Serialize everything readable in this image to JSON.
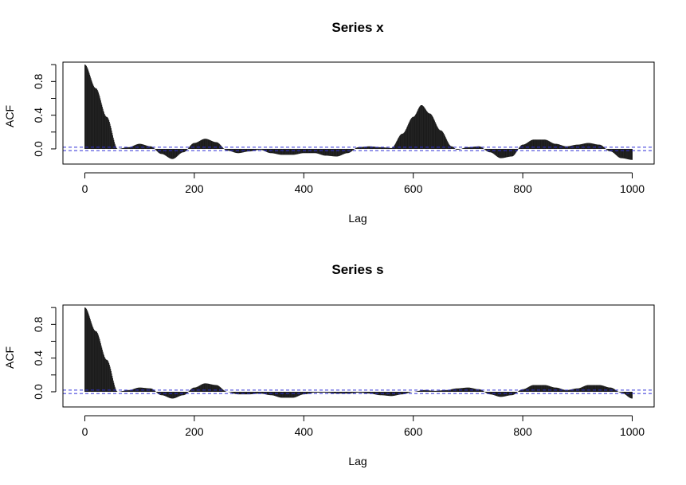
{
  "chart_data": [
    {
      "type": "bar",
      "title": "Series  x",
      "xlabel": "Lag",
      "ylabel": "ACF",
      "xlim": [
        -40,
        1040
      ],
      "ylim": [
        -0.18,
        1.03
      ],
      "x_ticks": [
        "0",
        "200",
        "400",
        "600",
        "800",
        "1000"
      ],
      "y_ticks": [
        "0.0",
        "0.4",
        "0.8"
      ],
      "conf_limit": 0.02,
      "acf_profile": [
        [
          0,
          1.0
        ],
        [
          20,
          0.72
        ],
        [
          40,
          0.38
        ],
        [
          60,
          0.0
        ],
        [
          80,
          0.02
        ],
        [
          100,
          0.06
        ],
        [
          120,
          0.03
        ],
        [
          140,
          -0.06
        ],
        [
          160,
          -0.12
        ],
        [
          180,
          -0.04
        ],
        [
          200,
          0.07
        ],
        [
          220,
          0.12
        ],
        [
          240,
          0.08
        ],
        [
          260,
          -0.02
        ],
        [
          280,
          -0.05
        ],
        [
          300,
          -0.03
        ],
        [
          320,
          -0.01
        ],
        [
          340,
          -0.05
        ],
        [
          360,
          -0.07
        ],
        [
          380,
          -0.07
        ],
        [
          400,
          -0.05
        ],
        [
          420,
          -0.05
        ],
        [
          440,
          -0.08
        ],
        [
          460,
          -0.09
        ],
        [
          480,
          -0.05
        ],
        [
          500,
          0.02
        ],
        [
          520,
          0.03
        ],
        [
          540,
          0.02
        ],
        [
          560,
          0.01
        ],
        [
          580,
          0.18
        ],
        [
          600,
          0.38
        ],
        [
          615,
          0.52
        ],
        [
          630,
          0.42
        ],
        [
          650,
          0.22
        ],
        [
          670,
          0.03
        ],
        [
          680,
          -0.01
        ],
        [
          700,
          0.02
        ],
        [
          720,
          0.03
        ],
        [
          740,
          -0.04
        ],
        [
          760,
          -0.11
        ],
        [
          780,
          -0.09
        ],
        [
          800,
          0.05
        ],
        [
          820,
          0.11
        ],
        [
          840,
          0.11
        ],
        [
          860,
          0.06
        ],
        [
          880,
          0.03
        ],
        [
          900,
          0.05
        ],
        [
          920,
          0.07
        ],
        [
          940,
          0.05
        ],
        [
          960,
          -0.03
        ],
        [
          980,
          -0.11
        ],
        [
          1000,
          -0.13
        ]
      ]
    },
    {
      "type": "bar",
      "title": "Series  s",
      "xlabel": "Lag",
      "ylabel": "ACF",
      "xlim": [
        -40,
        1040
      ],
      "ylim": [
        -0.18,
        1.03
      ],
      "x_ticks": [
        "0",
        "200",
        "400",
        "600",
        "800",
        "1000"
      ],
      "y_ticks": [
        "0.0",
        "0.4",
        "0.8"
      ],
      "conf_limit": 0.02,
      "acf_profile": [
        [
          0,
          1.0
        ],
        [
          20,
          0.72
        ],
        [
          40,
          0.38
        ],
        [
          60,
          0.0
        ],
        [
          80,
          0.02
        ],
        [
          100,
          0.05
        ],
        [
          120,
          0.04
        ],
        [
          140,
          -0.04
        ],
        [
          160,
          -0.08
        ],
        [
          180,
          -0.04
        ],
        [
          200,
          0.05
        ],
        [
          220,
          0.1
        ],
        [
          240,
          0.08
        ],
        [
          260,
          0.0
        ],
        [
          280,
          -0.03
        ],
        [
          300,
          -0.03
        ],
        [
          320,
          -0.02
        ],
        [
          340,
          -0.04
        ],
        [
          360,
          -0.07
        ],
        [
          380,
          -0.07
        ],
        [
          400,
          -0.03
        ],
        [
          420,
          -0.01
        ],
        [
          440,
          -0.01
        ],
        [
          460,
          -0.02
        ],
        [
          480,
          -0.02
        ],
        [
          500,
          -0.01
        ],
        [
          520,
          -0.02
        ],
        [
          540,
          -0.04
        ],
        [
          560,
          -0.05
        ],
        [
          580,
          -0.03
        ],
        [
          600,
          0.0
        ],
        [
          620,
          0.02
        ],
        [
          640,
          0.01
        ],
        [
          660,
          0.02
        ],
        [
          680,
          0.04
        ],
        [
          700,
          0.05
        ],
        [
          720,
          0.03
        ],
        [
          740,
          -0.03
        ],
        [
          760,
          -0.06
        ],
        [
          780,
          -0.04
        ],
        [
          800,
          0.03
        ],
        [
          820,
          0.08
        ],
        [
          840,
          0.08
        ],
        [
          860,
          0.05
        ],
        [
          880,
          0.02
        ],
        [
          900,
          0.04
        ],
        [
          920,
          0.08
        ],
        [
          940,
          0.08
        ],
        [
          960,
          0.05
        ],
        [
          980,
          -0.01
        ],
        [
          1000,
          -0.08
        ]
      ]
    }
  ]
}
